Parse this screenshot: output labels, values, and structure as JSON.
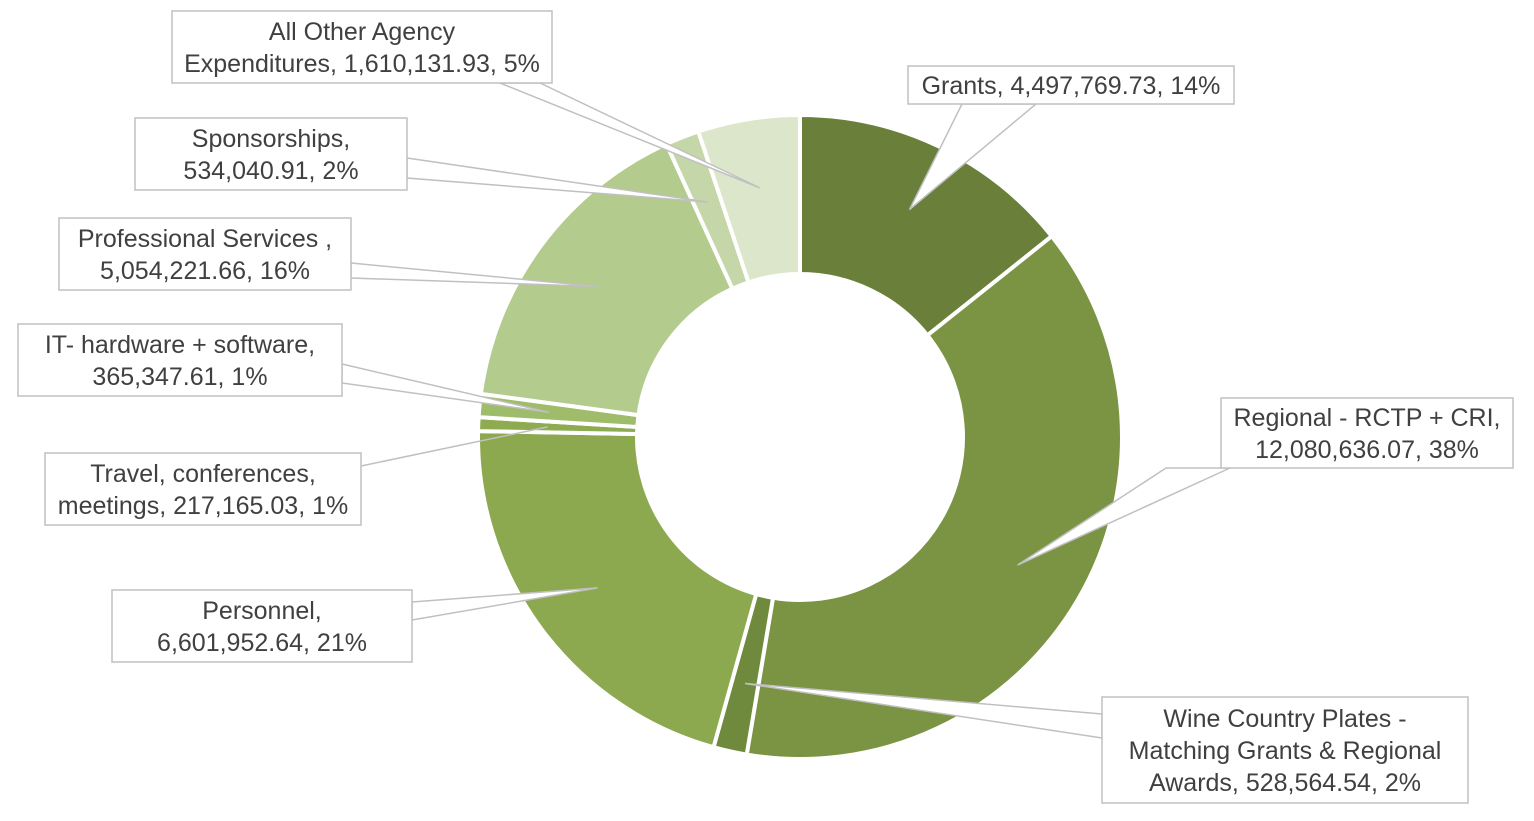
{
  "chart_data": {
    "type": "pie",
    "variant": "donut",
    "title": "",
    "slices": [
      {
        "label_lines": [
          "Grants, 4,497,769.73, 14%"
        ],
        "value": 4497769.73,
        "percent": 14,
        "color": "#6a7f3a"
      },
      {
        "label_lines": [
          "Regional - RCTP + CRI,",
          "12,080,636.07, 38%"
        ],
        "value": 12080636.07,
        "percent": 38,
        "color": "#7a9443"
      },
      {
        "label_lines": [
          "Wine Country Plates -",
          "Matching Grants & Regional",
          "Awards, 528,564.54, 2%"
        ],
        "value": 528564.54,
        "percent": 2,
        "color": "#6f8a3c"
      },
      {
        "label_lines": [
          "Personnel,",
          "6,601,952.64, 21%"
        ],
        "value": 6601952.64,
        "percent": 21,
        "color": "#8da94f"
      },
      {
        "label_lines": [
          "Travel, conferences,",
          "meetings, 217,165.03, 1%"
        ],
        "value": 217165.03,
        "percent": 1,
        "color": "#8fab52"
      },
      {
        "label_lines": [
          "IT- hardware + software,",
          "365,347.61, 1%"
        ],
        "value": 365347.61,
        "percent": 1,
        "color": "#9fbc6a"
      },
      {
        "label_lines": [
          "Professional Services ,",
          "5,054,221.66, 16%"
        ],
        "value": 5054221.66,
        "percent": 16,
        "color": "#b4cb8e"
      },
      {
        "label_lines": [
          "Sponsorships,",
          "534,040.91, 2%"
        ],
        "value": 534040.91,
        "percent": 2,
        "color": "#c5d7a8"
      },
      {
        "label_lines": [
          "All Other Agency",
          "Expenditures, 1,610,131.93, 5%"
        ],
        "value": 1610131.93,
        "percent": 5,
        "color": "#dce6cb"
      }
    ],
    "legend": "none"
  }
}
